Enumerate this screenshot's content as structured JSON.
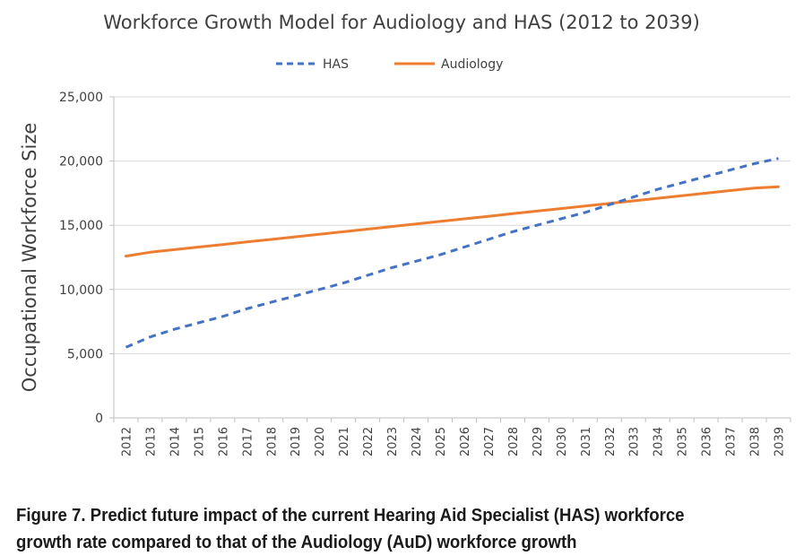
{
  "chart_data": {
    "type": "line",
    "title": "Workforce Growth Model for Audiology and HAS (2012 to 2039)",
    "xlabel": "",
    "ylabel": "Occupational Workforce Size",
    "ylim": [
      0,
      25000
    ],
    "yticks": [
      "0",
      "5,000",
      "10,000",
      "15,000",
      "20,000",
      "25,000"
    ],
    "ytick_values": [
      0,
      5000,
      10000,
      15000,
      20000,
      25000
    ],
    "grid": true,
    "legend_position": "top",
    "x": [
      "2012",
      "2013",
      "2014",
      "2015",
      "2016",
      "2017",
      "2018",
      "2019",
      "2020",
      "2021",
      "2022",
      "2023",
      "2024",
      "2025",
      "2026",
      "2027",
      "2028",
      "2029",
      "2030",
      "2031",
      "2032",
      "2033",
      "2034",
      "2035",
      "2036",
      "2037",
      "2038",
      "2039"
    ],
    "series": [
      {
        "name": "HAS",
        "color": "#4472C4",
        "style": "dashed",
        "values": [
          5500,
          6300,
          6900,
          7400,
          7900,
          8500,
          9000,
          9500,
          10000,
          10500,
          11100,
          11700,
          12200,
          12700,
          13300,
          13900,
          14500,
          15000,
          15500,
          16000,
          16600,
          17200,
          17800,
          18300,
          18800,
          19300,
          19800,
          20200
        ]
      },
      {
        "name": "Audiology",
        "color": "#ED7D31",
        "style": "solid",
        "values": [
          12600,
          12900,
          13100,
          13300,
          13500,
          13700,
          13900,
          14100,
          14300,
          14500,
          14700,
          14900,
          15100,
          15300,
          15500,
          15700,
          15900,
          16100,
          16300,
          16500,
          16700,
          16900,
          17100,
          17300,
          17500,
          17700,
          17900,
          18000
        ]
      }
    ]
  },
  "caption": "Figure 7. Predict future impact of the current Hearing Aid Specialist (HAS) workforce growth rate compared to that of the Audiology (AuD) workforce growth"
}
